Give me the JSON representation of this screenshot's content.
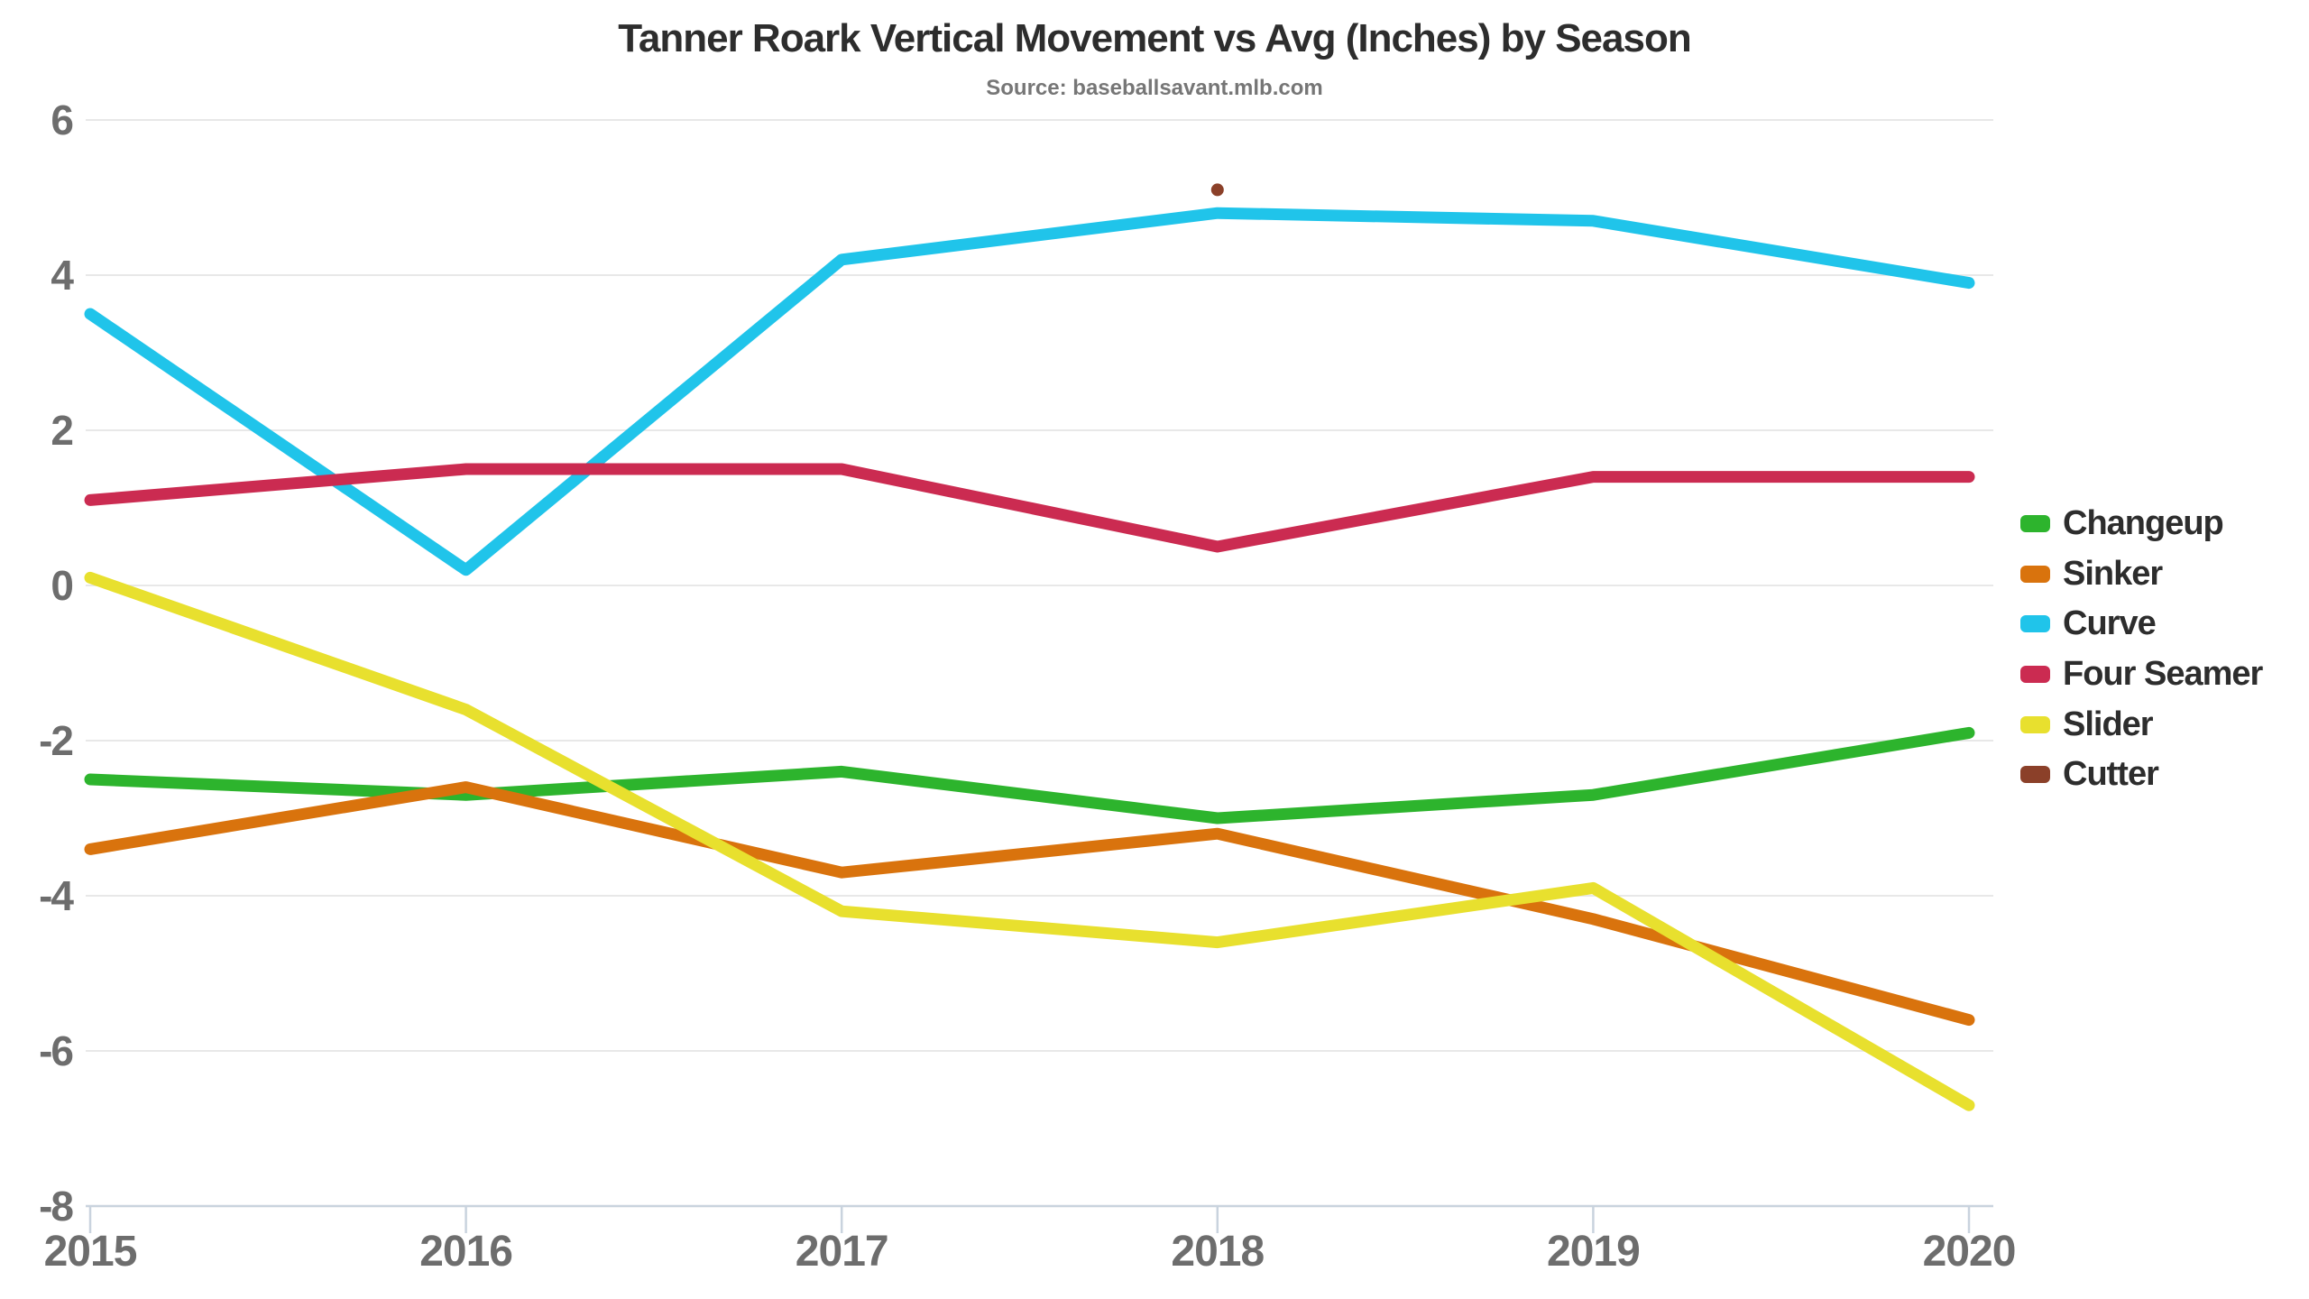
{
  "header": {
    "title": "Tanner Roark Vertical Movement vs Avg (Inches) by Season",
    "subtitle": "Source: baseballsavant.mlb.com"
  },
  "chart_data": {
    "type": "line",
    "title": "Tanner Roark Vertical Movement vs Avg (Inches) by Season",
    "source": "Source: baseballsavant.mlb.com",
    "categories": [
      "2015",
      "2016",
      "2017",
      "2018",
      "2019",
      "2020"
    ],
    "series": [
      {
        "name": "Changeup",
        "color": "#2db42d",
        "values": [
          -2.5,
          -2.7,
          -2.4,
          -3.0,
          -2.7,
          -1.9
        ]
      },
      {
        "name": "Sinker",
        "color": "#d9730d",
        "values": [
          -3.4,
          -2.6,
          -3.7,
          -3.2,
          -4.3,
          -5.6
        ]
      },
      {
        "name": "Curve",
        "color": "#20c4ea",
        "values": [
          3.5,
          0.2,
          4.2,
          4.8,
          4.7,
          3.9
        ]
      },
      {
        "name": "Four Seamer",
        "color": "#cb2b51",
        "values": [
          1.1,
          1.5,
          1.5,
          0.5,
          1.4,
          1.4
        ]
      },
      {
        "name": "Slider",
        "color": "#e8e02e",
        "values": [
          0.1,
          -1.6,
          -4.2,
          -4.6,
          -3.9,
          -6.7
        ]
      },
      {
        "name": "Cutter",
        "color": "#8b4029",
        "values": [
          null,
          null,
          null,
          5.1,
          null,
          null
        ]
      }
    ],
    "ylim": [
      -8,
      6
    ],
    "yticks": [
      6,
      4,
      2,
      0,
      -2,
      -4,
      -6,
      -8
    ],
    "xlabel": "",
    "ylabel": "",
    "grid": "horizontal",
    "legend_position": "right"
  },
  "colors": {
    "background": "#ffffff",
    "gridline": "#e8e8e8",
    "axis_line": "#c9d3de",
    "tick_label": "#6d6d6d",
    "title": "#2d2d2d",
    "subtitle": "#767676"
  }
}
